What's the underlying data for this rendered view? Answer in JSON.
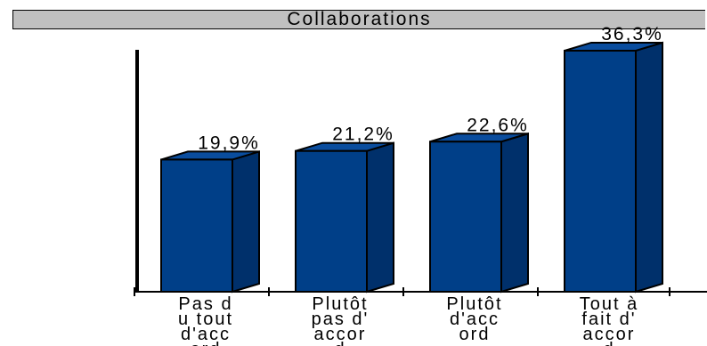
{
  "chart_data": {
    "type": "bar",
    "title": "Collaborations",
    "categories": [
      [
        "Pas d",
        "u tout",
        "d'acc",
        "ord"
      ],
      [
        "Plutôt",
        "pas d'",
        "accor",
        "d"
      ],
      [
        "Plutôt",
        "d'acc",
        "ord"
      ],
      [
        "Tout à",
        "fait d'",
        "accor",
        "d"
      ]
    ],
    "values": [
      19.9,
      21.2,
      22.6,
      36.3
    ],
    "value_labels": [
      "19,9%",
      "21,2%",
      "22,6%",
      "36,3%"
    ],
    "ylim": [
      0,
      40
    ],
    "grid": false,
    "legend": "none",
    "colors": {
      "bar_front": "#003f88",
      "bar_side": "#00306b",
      "bar_top": "#0a4d9e",
      "outline": "#000000"
    }
  }
}
